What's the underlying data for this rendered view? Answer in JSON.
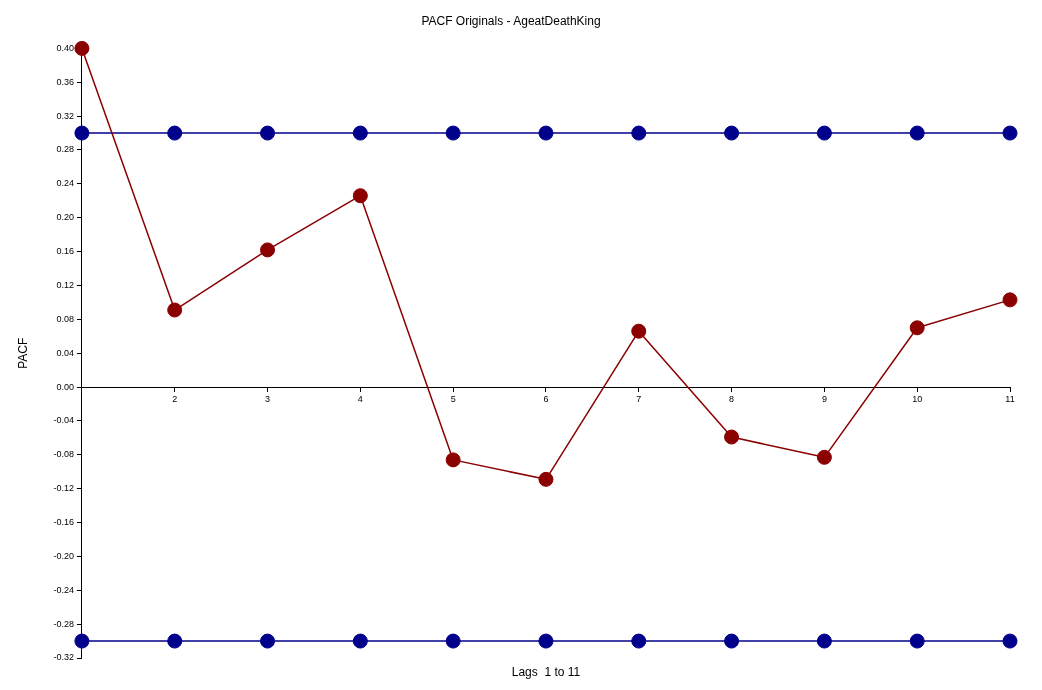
{
  "chart_data": {
    "type": "line",
    "title": "PACF Originals - AgeatDeathKing",
    "xlabel": "Lags  1 to 11",
    "ylabel": "PACF",
    "x": [
      1,
      2,
      3,
      4,
      5,
      6,
      7,
      8,
      9,
      10,
      11
    ],
    "series": [
      {
        "color": "#8b0000",
        "values": [
          0.4,
          0.091,
          0.162,
          0.226,
          -0.086,
          -0.109,
          0.066,
          -0.059,
          -0.083,
          0.07,
          0.103
        ]
      },
      {
        "color": "#00008b",
        "values": [
          0.3,
          0.3,
          0.3,
          0.3,
          0.3,
          0.3,
          0.3,
          0.3,
          0.3,
          0.3,
          0.3
        ]
      },
      {
        "color": "#00008b",
        "values": [
          -0.3,
          -0.3,
          -0.3,
          -0.3,
          -0.3,
          -0.3,
          -0.3,
          -0.3,
          -0.3,
          -0.3,
          -0.3
        ]
      }
    ],
    "xlim": [
      1,
      11
    ],
    "xticks": [
      2,
      3,
      4,
      5,
      6,
      7,
      8,
      9,
      10,
      11
    ],
    "ylim": [
      -0.32,
      0.4
    ],
    "yticks": [
      {
        "value": -0.32,
        "label": "-0.32"
      },
      {
        "value": -0.28,
        "label": "-0.28"
      },
      {
        "value": -0.24,
        "label": "-0.24"
      },
      {
        "value": -0.2,
        "label": "-0.20"
      },
      {
        "value": -0.16,
        "label": "-0.16"
      },
      {
        "value": -0.12,
        "label": "-0.12"
      },
      {
        "value": -0.08,
        "label": "-0.08"
      },
      {
        "value": -0.04,
        "label": "-0.04"
      },
      {
        "value": 0,
        "label": "0.00"
      },
      {
        "value": 0.04,
        "label": "0.04"
      },
      {
        "value": 0.08,
        "label": "0.08"
      },
      {
        "value": 0.12,
        "label": "0.12"
      },
      {
        "value": 0.16,
        "label": "0.16"
      },
      {
        "value": 0.2,
        "label": "0.20"
      },
      {
        "value": 0.24,
        "label": "0.24"
      },
      {
        "value": 0.28,
        "label": "0.28"
      },
      {
        "value": 0.32,
        "label": "0.32"
      },
      {
        "value": 0.36,
        "label": "0.36"
      },
      {
        "value": 0.4,
        "label": "0.40"
      }
    ],
    "grid": false,
    "legend": false,
    "marker": "circle",
    "line_style": "solid"
  }
}
